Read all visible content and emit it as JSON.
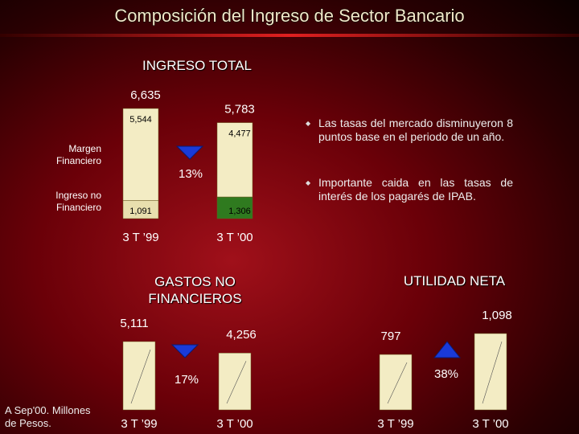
{
  "title": "Composición del Ingreso de Sector Bancario",
  "bullets": [
    "Las tasas del mercado disminuyeron 8 puntos base en el periodo de un año.",
    "Importante caida en las tasas de interés de los pagarés de IPAB."
  ],
  "footnote": "A Sep'00. Millones de Pesos.",
  "chart_data": [
    {
      "type": "stacked-bar",
      "title": "INGRESO TOTAL",
      "categories": [
        "3 T ’99",
        "3 T ’00"
      ],
      "series": [
        {
          "name": "Ingreso no Financiero",
          "colors": [
            "#e8dfae",
            "#2f7a1f"
          ],
          "values": [
            1091,
            1306
          ],
          "value_labels": [
            "1,091",
            "1,306"
          ]
        },
        {
          "name": "Margen Financiero",
          "colors": [
            "#f3ecc4",
            "#f3ecc4"
          ],
          "values": [
            5544,
            4477
          ],
          "value_labels": [
            "5,544",
            "4,477"
          ]
        }
      ],
      "totals": [
        6635,
        5783
      ],
      "total_labels": [
        "6,635",
        "5,783"
      ],
      "annotation": {
        "text": "13%",
        "direction": "down"
      }
    },
    {
      "type": "bar",
      "title": "GASTOS NO FINANCIEROS",
      "categories": [
        "3 T ’99",
        "3 T ’00"
      ],
      "color": "#f3ecc4",
      "values": [
        5111,
        4256
      ],
      "value_labels": [
        "5,111",
        "4,256"
      ],
      "annotation": {
        "text": "17%",
        "direction": "down"
      }
    },
    {
      "type": "bar",
      "title": "UTILIDAD NETA",
      "categories": [
        "3 T ’99",
        "3 T ’00"
      ],
      "color": "#f3ecc4",
      "values": [
        797,
        1098
      ],
      "value_labels": [
        "797",
        "1,098"
      ],
      "annotation": {
        "text": "38%",
        "direction": "up"
      }
    }
  ]
}
